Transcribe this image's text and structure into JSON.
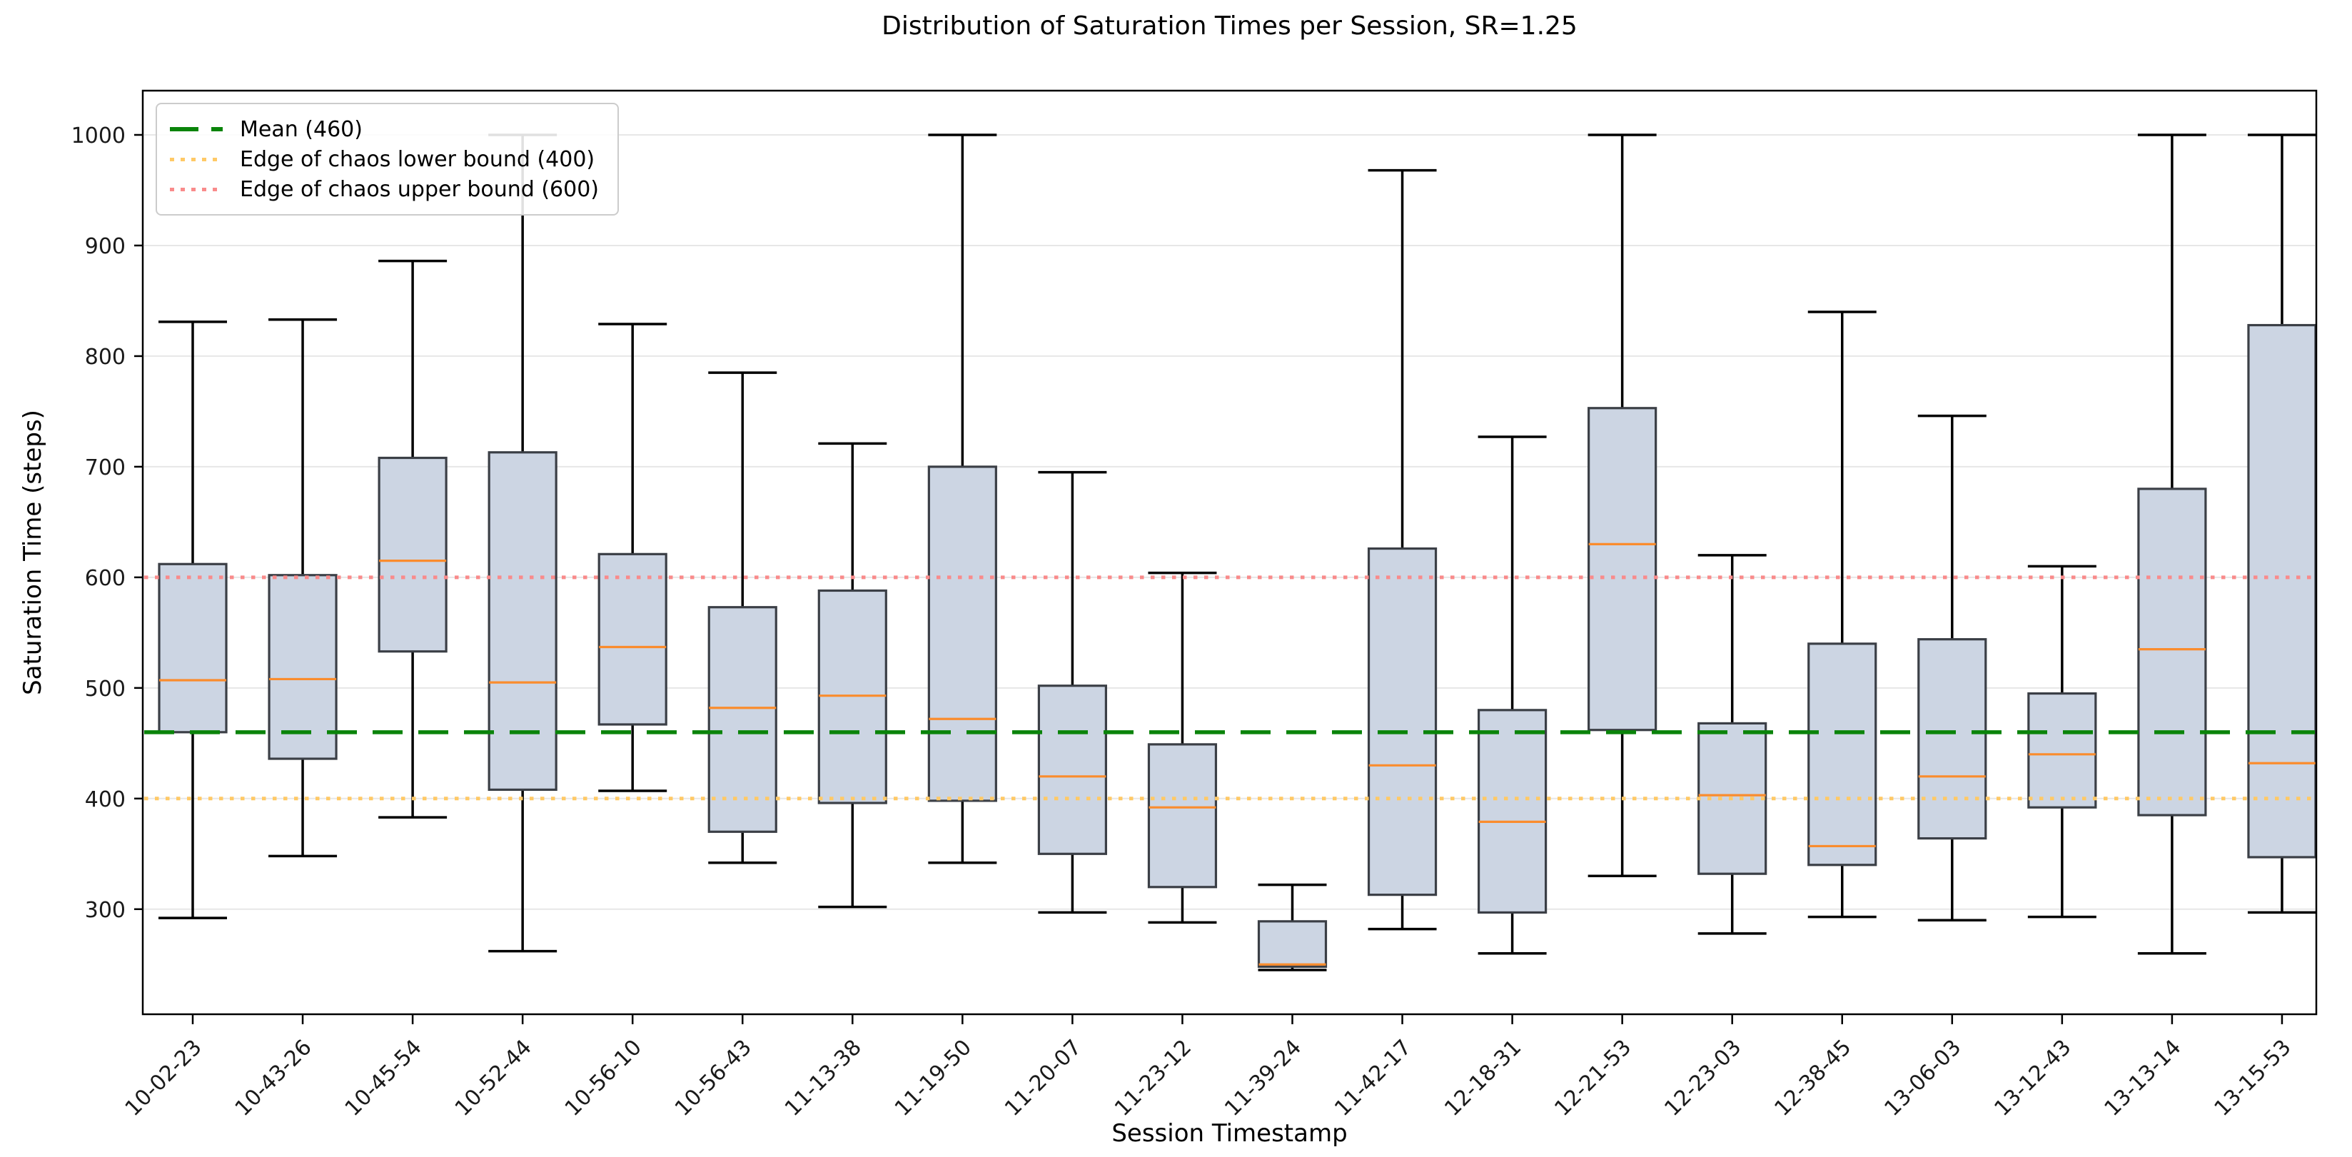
{
  "chart_data": {
    "type": "boxplot",
    "title": "Distribution of Saturation Times per Session, SR=1.25",
    "xlabel": "Session Timestamp",
    "ylabel": "Saturation Time (steps)",
    "grid": true,
    "legend_position": "upper left",
    "ylim": [
      205,
      1040
    ],
    "y_ticks": [
      300,
      400,
      500,
      600,
      700,
      800,
      900,
      1000
    ],
    "colors": {
      "box_fill": "#ccd5e3",
      "box_edge": "#3b3f46",
      "median": "#fa8c2d",
      "whisker": "#000000",
      "grid": "#e7e7e7",
      "spine": "#000000",
      "tick_text": "#1a1a1a",
      "mean_line": "#0a840a",
      "lower_bound_line": "#ffc966",
      "upper_bound_line": "#f98b8b"
    },
    "reference_lines": [
      {
        "name": "mean-line",
        "label": "Mean (460)",
        "value": 460,
        "color": "#0a840a",
        "style": "dashed"
      },
      {
        "name": "lower-bound-line",
        "label": "Edge of chaos lower bound (400)",
        "value": 400,
        "color": "#ffc966",
        "style": "dotted"
      },
      {
        "name": "upper-bound-line",
        "label": "Edge of chaos upper bound (600)",
        "value": 600,
        "color": "#f98b8b",
        "style": "dotted"
      }
    ],
    "sessions": [
      {
        "label": "10-02-23",
        "whisker_low": 292,
        "q1": 460,
        "median": 507,
        "q3": 612,
        "whisker_high": 831
      },
      {
        "label": "10-43-26",
        "whisker_low": 348,
        "q1": 436,
        "median": 508,
        "q3": 602,
        "whisker_high": 833
      },
      {
        "label": "10-45-54",
        "whisker_low": 383,
        "q1": 533,
        "median": 615,
        "q3": 708,
        "whisker_high": 886
      },
      {
        "label": "10-52-44",
        "whisker_low": 262,
        "q1": 408,
        "median": 505,
        "q3": 713,
        "whisker_high": 1000
      },
      {
        "label": "10-56-10",
        "whisker_low": 407,
        "q1": 467,
        "median": 537,
        "q3": 621,
        "whisker_high": 829
      },
      {
        "label": "10-56-43",
        "whisker_low": 342,
        "q1": 370,
        "median": 482,
        "q3": 573,
        "whisker_high": 785
      },
      {
        "label": "11-13-38",
        "whisker_low": 302,
        "q1": 396,
        "median": 493,
        "q3": 588,
        "whisker_high": 721
      },
      {
        "label": "11-19-50",
        "whisker_low": 342,
        "q1": 398,
        "median": 472,
        "q3": 700,
        "whisker_high": 1000
      },
      {
        "label": "11-20-07",
        "whisker_low": 297,
        "q1": 350,
        "median": 420,
        "q3": 502,
        "whisker_high": 695
      },
      {
        "label": "11-23-12",
        "whisker_low": 288,
        "q1": 320,
        "median": 392,
        "q3": 449,
        "whisker_high": 604
      },
      {
        "label": "11-39-24",
        "whisker_low": 245,
        "q1": 248,
        "median": 250,
        "q3": 289,
        "whisker_high": 322
      },
      {
        "label": "11-42-17",
        "whisker_low": 282,
        "q1": 313,
        "median": 430,
        "q3": 626,
        "whisker_high": 968
      },
      {
        "label": "12-18-31",
        "whisker_low": 260,
        "q1": 297,
        "median": 379,
        "q3": 480,
        "whisker_high": 727
      },
      {
        "label": "12-21-53",
        "whisker_low": 330,
        "q1": 462,
        "median": 630,
        "q3": 753,
        "whisker_high": 1000
      },
      {
        "label": "12-23-03",
        "whisker_low": 278,
        "q1": 332,
        "median": 403,
        "q3": 468,
        "whisker_high": 620
      },
      {
        "label": "12-38-45",
        "whisker_low": 293,
        "q1": 340,
        "median": 357,
        "q3": 540,
        "whisker_high": 840
      },
      {
        "label": "13-06-03",
        "whisker_low": 290,
        "q1": 364,
        "median": 420,
        "q3": 544,
        "whisker_high": 746
      },
      {
        "label": "13-12-43",
        "whisker_low": 293,
        "q1": 392,
        "median": 440,
        "q3": 495,
        "whisker_high": 610
      },
      {
        "label": "13-13-14",
        "whisker_low": 260,
        "q1": 385,
        "median": 535,
        "q3": 680,
        "whisker_high": 1000
      },
      {
        "label": "13-15-53",
        "whisker_low": 297,
        "q1": 347,
        "median": 432,
        "q3": 828,
        "whisker_high": 1000
      }
    ]
  }
}
